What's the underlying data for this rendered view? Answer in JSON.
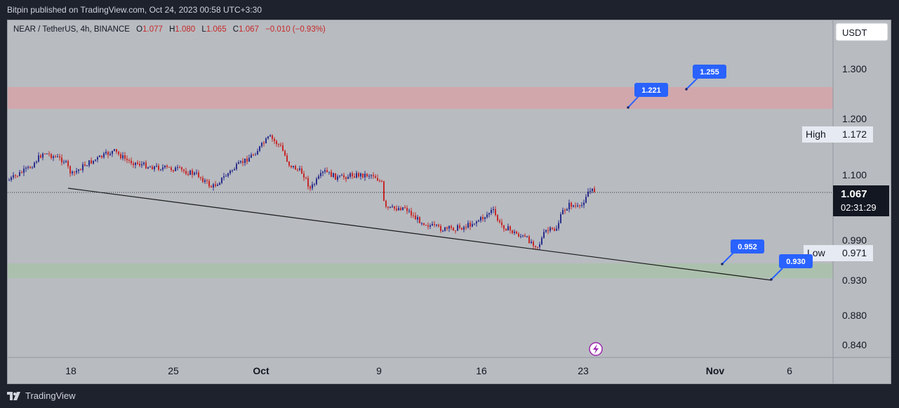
{
  "header": {
    "published": "Bitpin published on TradingView.com, Oct 24, 2023 00:58 UTC+3:30"
  },
  "footer": {
    "brand": "TradingView"
  },
  "chart_data": {
    "type": "candlestick",
    "symbol_line": {
      "name": "NEAR / TetherUS, 4h, BINANCE",
      "o_label": "O",
      "o_value": "1.077",
      "h_label": "H",
      "h_value": "1.080",
      "l_label": "L",
      "l_value": "1.065",
      "c_label": "C",
      "c_value": "1.067",
      "change": "−0.010 (−0.93%)"
    },
    "currency": "USDT",
    "y_ticks": [
      "1.300",
      "1.200",
      "1.100",
      "0.990",
      "0.930",
      "0.880",
      "0.840"
    ],
    "x_ticks": [
      "18",
      "25",
      "Oct",
      "9",
      "16",
      "23",
      "Nov",
      "6"
    ],
    "last_price": {
      "value": "1.067",
      "countdown": "02:31:29"
    },
    "high": {
      "label": "High",
      "value": "1.172"
    },
    "low": {
      "label": "Low",
      "value": "0.971"
    },
    "zones": [
      {
        "kind": "resistance",
        "from": 1.221,
        "to": 1.255,
        "color": "#d9a0a6"
      },
      {
        "kind": "support",
        "from": 0.93,
        "to": 0.952,
        "color": "#a9c3a8"
      }
    ],
    "callouts": [
      "1.221",
      "1.255",
      "0.952",
      "0.930"
    ],
    "colors": {
      "up": "#2a2e8c",
      "down": "#c62828",
      "callout": "#2962ff",
      "background": "#b8bbc0"
    }
  }
}
